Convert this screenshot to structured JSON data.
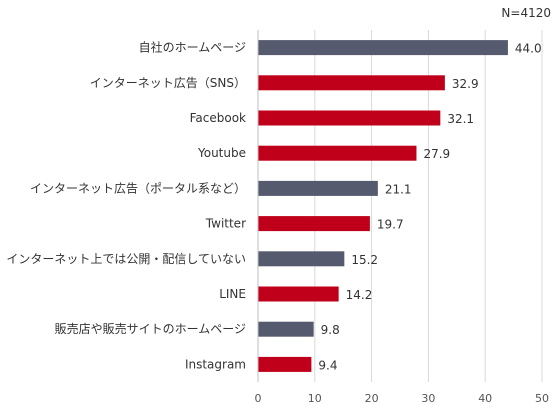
{
  "chart_data": {
    "type": "bar",
    "orientation": "horizontal",
    "note": "N=4120",
    "categories": [
      "自社のホームページ",
      "インターネット広告（SNS）",
      "Facebook",
      "Youtube",
      "インターネット広告（ポータル系など）",
      "Twitter",
      "インターネット上では公開・配信していない",
      "LINE",
      "販売店や販売サイトのホームページ",
      "Instagram"
    ],
    "values": [
      44.0,
      32.9,
      32.1,
      27.9,
      21.1,
      19.7,
      15.2,
      14.2,
      9.8,
      9.4
    ],
    "value_labels": [
      "44.0",
      "32.9",
      "32.1",
      "27.9",
      "21.1",
      "19.7",
      "15.2",
      "14.2",
      "9.8",
      "9.4"
    ],
    "bar_colors": [
      "#555a6e",
      "#c0001a",
      "#c0001a",
      "#c0001a",
      "#555a6e",
      "#c0001a",
      "#555a6e",
      "#c0001a",
      "#555a6e",
      "#c0001a"
    ],
    "xlim": [
      0,
      50
    ],
    "xticks": [
      0,
      10,
      20,
      30,
      40,
      50
    ],
    "grid": true,
    "legend": "none"
  }
}
